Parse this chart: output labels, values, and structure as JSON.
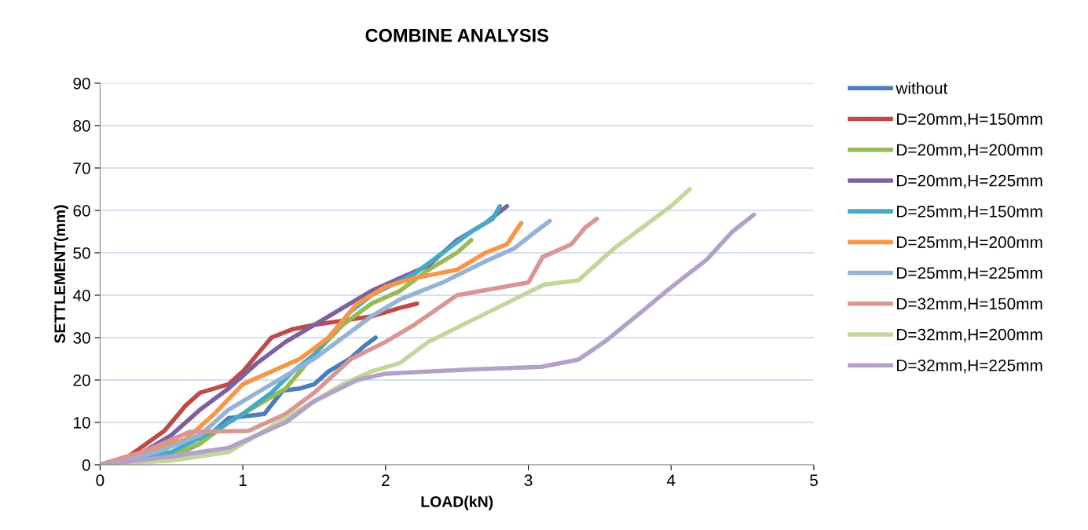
{
  "chart_data": {
    "type": "line",
    "title": "COMBINE ANALYSIS",
    "xlabel": "LOAD(kN)",
    "ylabel": "SETTLEMENT(mm)",
    "xlim": [
      0,
      5
    ],
    "xticks": [
      0,
      1,
      2,
      3,
      4,
      5
    ],
    "ylim": [
      0,
      90
    ],
    "yticks": [
      0,
      10,
      20,
      30,
      40,
      50,
      60,
      70,
      80,
      90
    ],
    "grid": "y",
    "legend": "right",
    "marker": "none",
    "line_style": "solid",
    "series": [
      {
        "name": "without",
        "color": "#4a7ebb",
        "x": [
          0,
          0.45,
          0.7,
          0.9,
          1.15,
          1.28,
          1.4,
          1.5,
          1.6,
          1.75,
          1.85,
          1.93
        ],
        "values": [
          0,
          1,
          5,
          11,
          12,
          17.5,
          18,
          19,
          22,
          25,
          28,
          30
        ]
      },
      {
        "name": "D=20mm,H=150mm",
        "color": "#be4b48",
        "x": [
          0,
          0.2,
          0.45,
          0.6,
          0.7,
          0.9,
          1.0,
          1.1,
          1.2,
          1.35,
          1.5,
          1.7,
          1.9,
          2.1,
          2.22
        ],
        "values": [
          0,
          2,
          8,
          14,
          17,
          19,
          22,
          26,
          30,
          32,
          33,
          34,
          35,
          37,
          38
        ]
      },
      {
        "name": "D=20mm,H=200mm",
        "color": "#98b954",
        "x": [
          0,
          0.5,
          0.7,
          0.9,
          1.1,
          1.3,
          1.5,
          1.7,
          1.9,
          2.1,
          2.3,
          2.5,
          2.6
        ],
        "values": [
          0,
          2,
          5,
          10,
          14,
          18,
          26,
          33,
          38,
          41,
          46,
          50,
          53
        ]
      },
      {
        "name": "D=20mm,H=225mm",
        "color": "#7d60a0",
        "x": [
          0,
          0.3,
          0.5,
          0.7,
          0.9,
          1.1,
          1.3,
          1.5,
          1.7,
          1.9,
          2.1,
          2.3,
          2.5,
          2.7,
          2.85
        ],
        "values": [
          0,
          3,
          7,
          13,
          18,
          24,
          29,
          33,
          37,
          41,
          44,
          47,
          53,
          57,
          61
        ]
      },
      {
        "name": "D=25mm,H=150mm",
        "color": "#46aac5",
        "x": [
          0,
          0.5,
          0.8,
          1.0,
          1.2,
          1.35,
          1.5,
          1.6,
          1.75,
          1.9,
          2.2,
          2.4,
          2.6,
          2.75,
          2.8
        ],
        "values": [
          0,
          3,
          8,
          12,
          17,
          22,
          26,
          30,
          36,
          40,
          45,
          50,
          55,
          58,
          61
        ]
      },
      {
        "name": "D=25mm,H=200mm",
        "color": "#f79646",
        "x": [
          0,
          0.3,
          0.6,
          0.8,
          1.0,
          1.2,
          1.4,
          1.6,
          1.8,
          2.0,
          2.2,
          2.5,
          2.7,
          2.85,
          2.95
        ],
        "values": [
          0,
          3,
          6,
          12,
          19,
          22,
          25,
          30,
          38,
          42,
          44,
          46,
          50,
          52,
          57
        ]
      },
      {
        "name": "D=25mm,H=225mm",
        "color": "#95b3d7",
        "x": [
          0,
          0.4,
          0.7,
          0.9,
          1.1,
          1.3,
          1.5,
          1.7,
          1.9,
          2.1,
          2.4,
          2.7,
          2.9,
          3.05,
          3.15
        ],
        "values": [
          0,
          3,
          7,
          13,
          17,
          21,
          25,
          30,
          35,
          39,
          43,
          48,
          51,
          55,
          57.5
        ]
      },
      {
        "name": "D=32mm,H=150mm",
        "color": "#d99694",
        "x": [
          0,
          0.3,
          0.63,
          1.04,
          1.3,
          1.5,
          1.76,
          2.0,
          2.2,
          2.5,
          3.0,
          3.1,
          3.3,
          3.4,
          3.48
        ],
        "values": [
          0,
          3,
          7.8,
          8,
          12,
          17,
          25,
          29,
          33,
          40,
          43,
          49,
          52,
          56,
          58
        ]
      },
      {
        "name": "D=32mm,H=200mm",
        "color": "#c3d69b",
        "x": [
          0,
          0.5,
          0.9,
          1.0,
          1.2,
          1.4,
          1.7,
          1.9,
          2.1,
          2.3,
          2.6,
          2.9,
          3.11,
          3.35,
          3.6,
          3.8,
          4.0,
          4.13
        ],
        "values": [
          0,
          1,
          3,
          5,
          9,
          13,
          19,
          22,
          24,
          29,
          34,
          39,
          42.5,
          43.5,
          51,
          56,
          61,
          65
        ]
      },
      {
        "name": "D=32mm,H=225mm",
        "color": "#b3a2c7",
        "x": [
          0,
          0.5,
          0.9,
          1.1,
          1.3,
          1.5,
          1.8,
          2.0,
          2.6,
          3.09,
          3.35,
          3.55,
          3.79,
          3.99,
          4.25,
          4.43,
          4.58
        ],
        "values": [
          0,
          2,
          4,
          7,
          10,
          15,
          20,
          21.5,
          22.5,
          23.1,
          24.8,
          29.4,
          36,
          41.6,
          48.4,
          55,
          59
        ]
      }
    ]
  }
}
